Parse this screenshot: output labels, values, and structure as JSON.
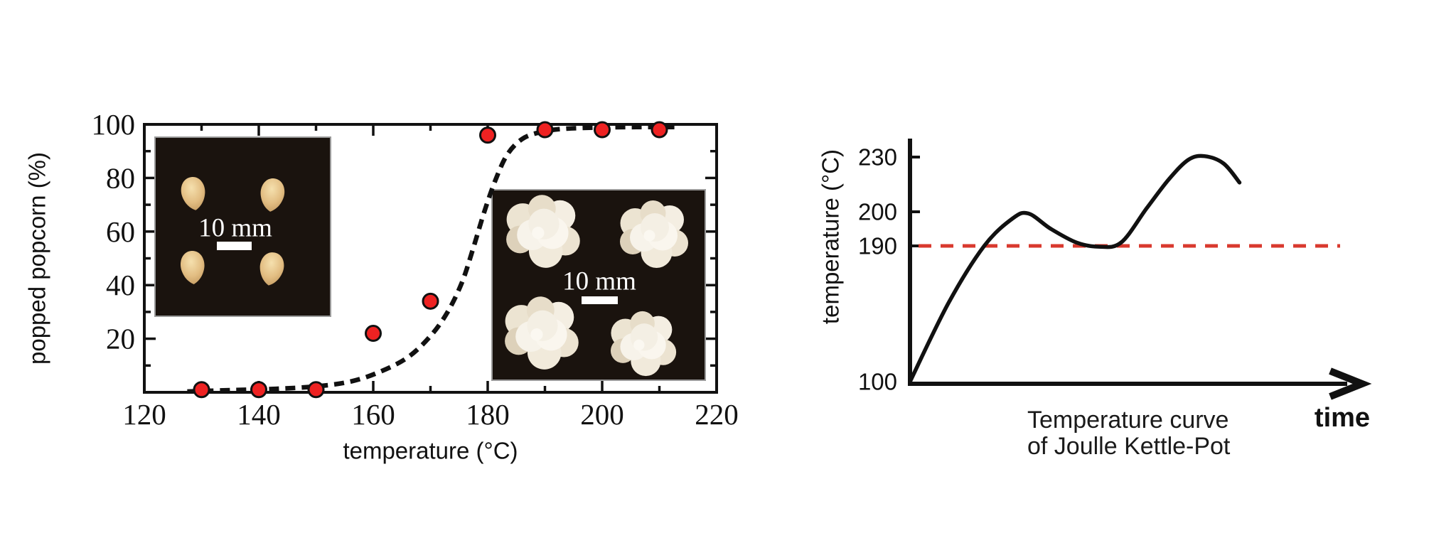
{
  "colors": {
    "ink": "#111111",
    "marker_red": "#ee2222",
    "marker_outline": "#111111",
    "reference_red": "#d9392e",
    "inset_background": "#1a130e",
    "inset_border": "#9a9a9a",
    "kernel_tan": "#e2bd82",
    "popcorn_white": "#f6f1e7",
    "scale_bar_white": "#ffffff"
  },
  "chart_data": [
    {
      "id": "popped-popcorn-vs-temperature",
      "type": "scatter",
      "title": "",
      "xlabel": "temperature (°C)",
      "ylabel": "popped popcorn (%)",
      "xlim": [
        120,
        220
      ],
      "ylim": [
        0,
        100
      ],
      "grid": false,
      "x_ticks": [
        120,
        140,
        160,
        180,
        200,
        220
      ],
      "y_ticks": [
        20,
        40,
        60,
        80,
        100
      ],
      "points": {
        "name": "popped fraction measurements",
        "x": [
          130,
          140,
          150,
          160,
          170,
          180,
          190,
          200,
          210
        ],
        "y": [
          1,
          1,
          1,
          22,
          34,
          96,
          98,
          98,
          98
        ]
      },
      "fit_curve": {
        "name": "sigmoid fit",
        "style": "dashed",
        "x": [
          127.5,
          135,
          143,
          150,
          156,
          161,
          166,
          170,
          173,
          175.5,
          177.5,
          179.5,
          181.5,
          183.5,
          186,
          189,
          193,
          199,
          206,
          213
        ],
        "y": [
          0.3,
          0.8,
          1.3,
          2.2,
          4,
          7.5,
          13,
          21,
          30,
          41,
          54,
          68,
          80,
          89,
          94.5,
          97,
          98.3,
          98.8,
          99,
          99
        ]
      },
      "insets": [
        {
          "content": "photo of four unpopped corn kernels on black background",
          "label": "10 mm"
        },
        {
          "content": "photo of four popped popcorn pieces on black background",
          "label": "10 mm"
        }
      ]
    },
    {
      "id": "kettle-pot-temperature-curve",
      "type": "line",
      "xlabel": "time",
      "ylabel": "temperature (°C)",
      "y_ticks": [
        230,
        200,
        190,
        100
      ],
      "reference_line": {
        "value": 190,
        "style": "dashed"
      },
      "series": [
        {
          "name": "pot temperature over time",
          "t": [
            0,
            0.6,
            1.16,
            1.6,
            1.85,
            2.2,
            2.6,
            2.95,
            3.3,
            3.7,
            4.05,
            4.35,
            4.6,
            4.9,
            5.15
          ],
          "temp": [
            100,
            152,
            190,
            198,
            199.5,
            195,
            191,
            189.5,
            191,
            202,
            218,
            228.5,
            230.5,
            226.5,
            216
          ]
        }
      ],
      "caption": [
        "Temperature curve",
        "of Joulle Kettle-Pot"
      ]
    }
  ]
}
